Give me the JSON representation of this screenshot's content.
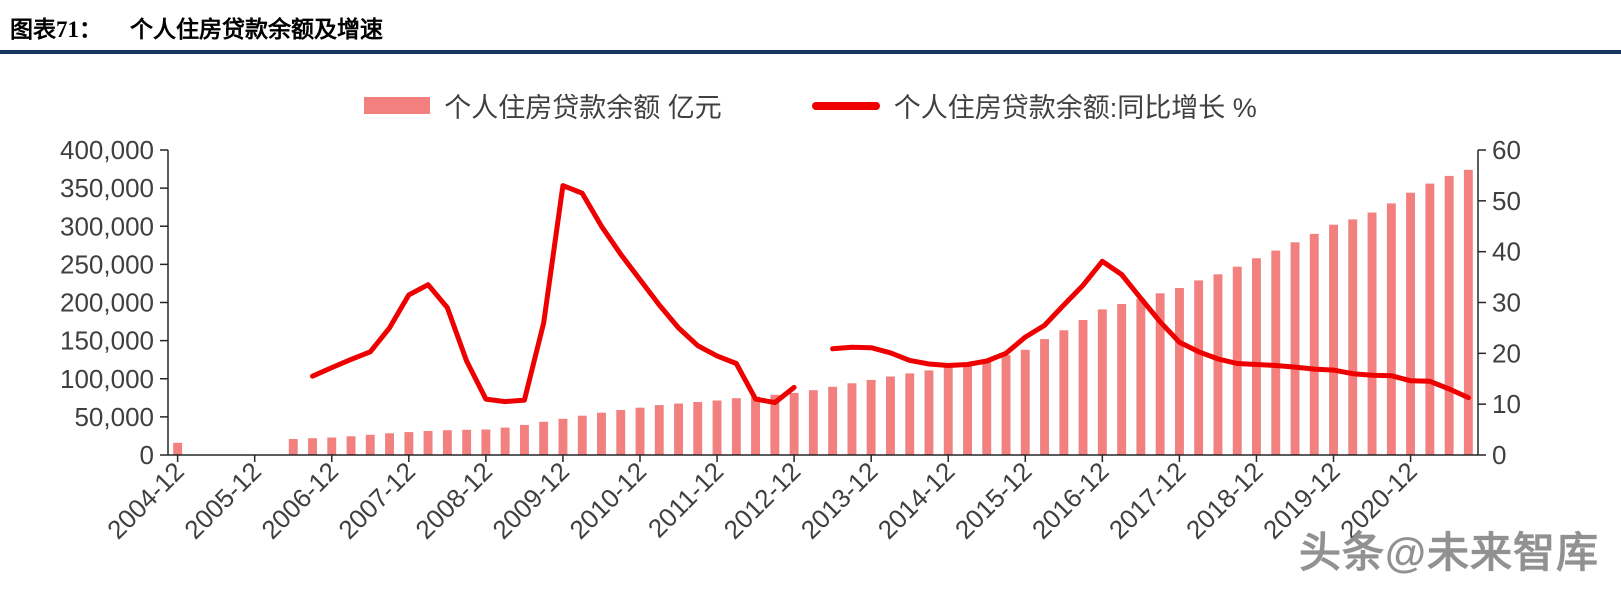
{
  "header": {
    "label": "图表71：",
    "title": "个人住房贷款余额及增速"
  },
  "watermark": "头条@未来智库",
  "colors": {
    "bar": "#F1807E",
    "line": "#EE0000",
    "rule": "#17375E",
    "axis": "#262626",
    "axis_text": "#3f3f3f"
  },
  "chart_data": {
    "type": "bar",
    "subtype": "bar+line dual axis",
    "grid": false,
    "legend_position": "top-center",
    "x": [
      "2004-12",
      "2005-03",
      "2005-06",
      "2005-09",
      "2005-12",
      "2006-03",
      "2006-06",
      "2006-09",
      "2006-12",
      "2007-03",
      "2007-06",
      "2007-09",
      "2007-12",
      "2008-03",
      "2008-06",
      "2008-09",
      "2008-12",
      "2009-03",
      "2009-06",
      "2009-09",
      "2009-12",
      "2010-03",
      "2010-06",
      "2010-09",
      "2010-12",
      "2011-03",
      "2011-06",
      "2011-09",
      "2011-12",
      "2012-03",
      "2012-06",
      "2012-09",
      "2012-12",
      "2013-03",
      "2013-06",
      "2013-09",
      "2013-12",
      "2014-03",
      "2014-06",
      "2014-09",
      "2014-12",
      "2015-03",
      "2015-06",
      "2015-09",
      "2015-12",
      "2016-03",
      "2016-06",
      "2016-09",
      "2016-12",
      "2017-03",
      "2017-06",
      "2017-09",
      "2017-12",
      "2018-03",
      "2018-06",
      "2018-09",
      "2018-12",
      "2019-03",
      "2019-06",
      "2019-09",
      "2019-12",
      "2020-03",
      "2020-06",
      "2020-09",
      "2020-12",
      "2021-03",
      "2021-06",
      "2021-09"
    ],
    "x_tick_labels": [
      "2004-12",
      "2005-12",
      "2006-12",
      "2007-12",
      "2008-12",
      "2009-12",
      "2010-12",
      "2011-12",
      "2012-12",
      "2013-12",
      "2014-12",
      "2015-12",
      "2016-12",
      "2017-12",
      "2018-12",
      "2019-12",
      "2020-12"
    ],
    "left_axis": {
      "min": 0,
      "max": 400000,
      "step": 50000
    },
    "right_axis": {
      "min": 0,
      "max": 60,
      "step": 10
    },
    "series": [
      {
        "name": "个人住房贷款余额  亿元",
        "type": "bar",
        "axis": "left",
        "color": "#F1807E",
        "values": [
          16000,
          null,
          null,
          null,
          null,
          null,
          21000,
          22000,
          23000,
          24500,
          26500,
          28500,
          30000,
          31500,
          32500,
          33000,
          33500,
          36000,
          39500,
          43500,
          47500,
          51500,
          55500,
          59000,
          62000,
          65500,
          67500,
          69500,
          71500,
          74500,
          76500,
          79000,
          81500,
          85000,
          89500,
          94000,
          98500,
          103000,
          107000,
          111000,
          115500,
          119000,
          124500,
          131000,
          138000,
          152000,
          163500,
          177000,
          191000,
          198000,
          205000,
          212000,
          219000,
          229000,
          237000,
          247000,
          258000,
          268000,
          279000,
          290000,
          302000,
          309000,
          318000,
          330000,
          344000,
          356000,
          366000,
          374000
        ]
      },
      {
        "name": "个人住房贷款余额:同比增长  %",
        "type": "line",
        "axis": "right",
        "color": "#EE0000",
        "values": [
          null,
          null,
          null,
          null,
          null,
          null,
          null,
          15.5,
          17.2,
          18.8,
          20.3,
          25.0,
          31.5,
          33.5,
          29.0,
          18.5,
          11.0,
          10.5,
          10.8,
          26.0,
          53.0,
          51.5,
          45.0,
          39.5,
          34.5,
          29.5,
          25.0,
          21.5,
          19.5,
          18.0,
          11.0,
          10.3,
          13.3,
          null,
          20.9,
          21.2,
          21.1,
          20.1,
          18.6,
          17.9,
          17.6,
          17.8,
          18.5,
          20.0,
          23.2,
          25.5,
          29.5,
          33.4,
          38.1,
          35.5,
          30.8,
          26.2,
          22.2,
          20.3,
          18.9,
          18.0,
          17.8,
          17.6,
          17.3,
          16.9,
          16.7,
          16.0,
          15.7,
          15.6,
          14.6,
          14.5,
          13.0,
          11.3
        ]
      }
    ]
  }
}
